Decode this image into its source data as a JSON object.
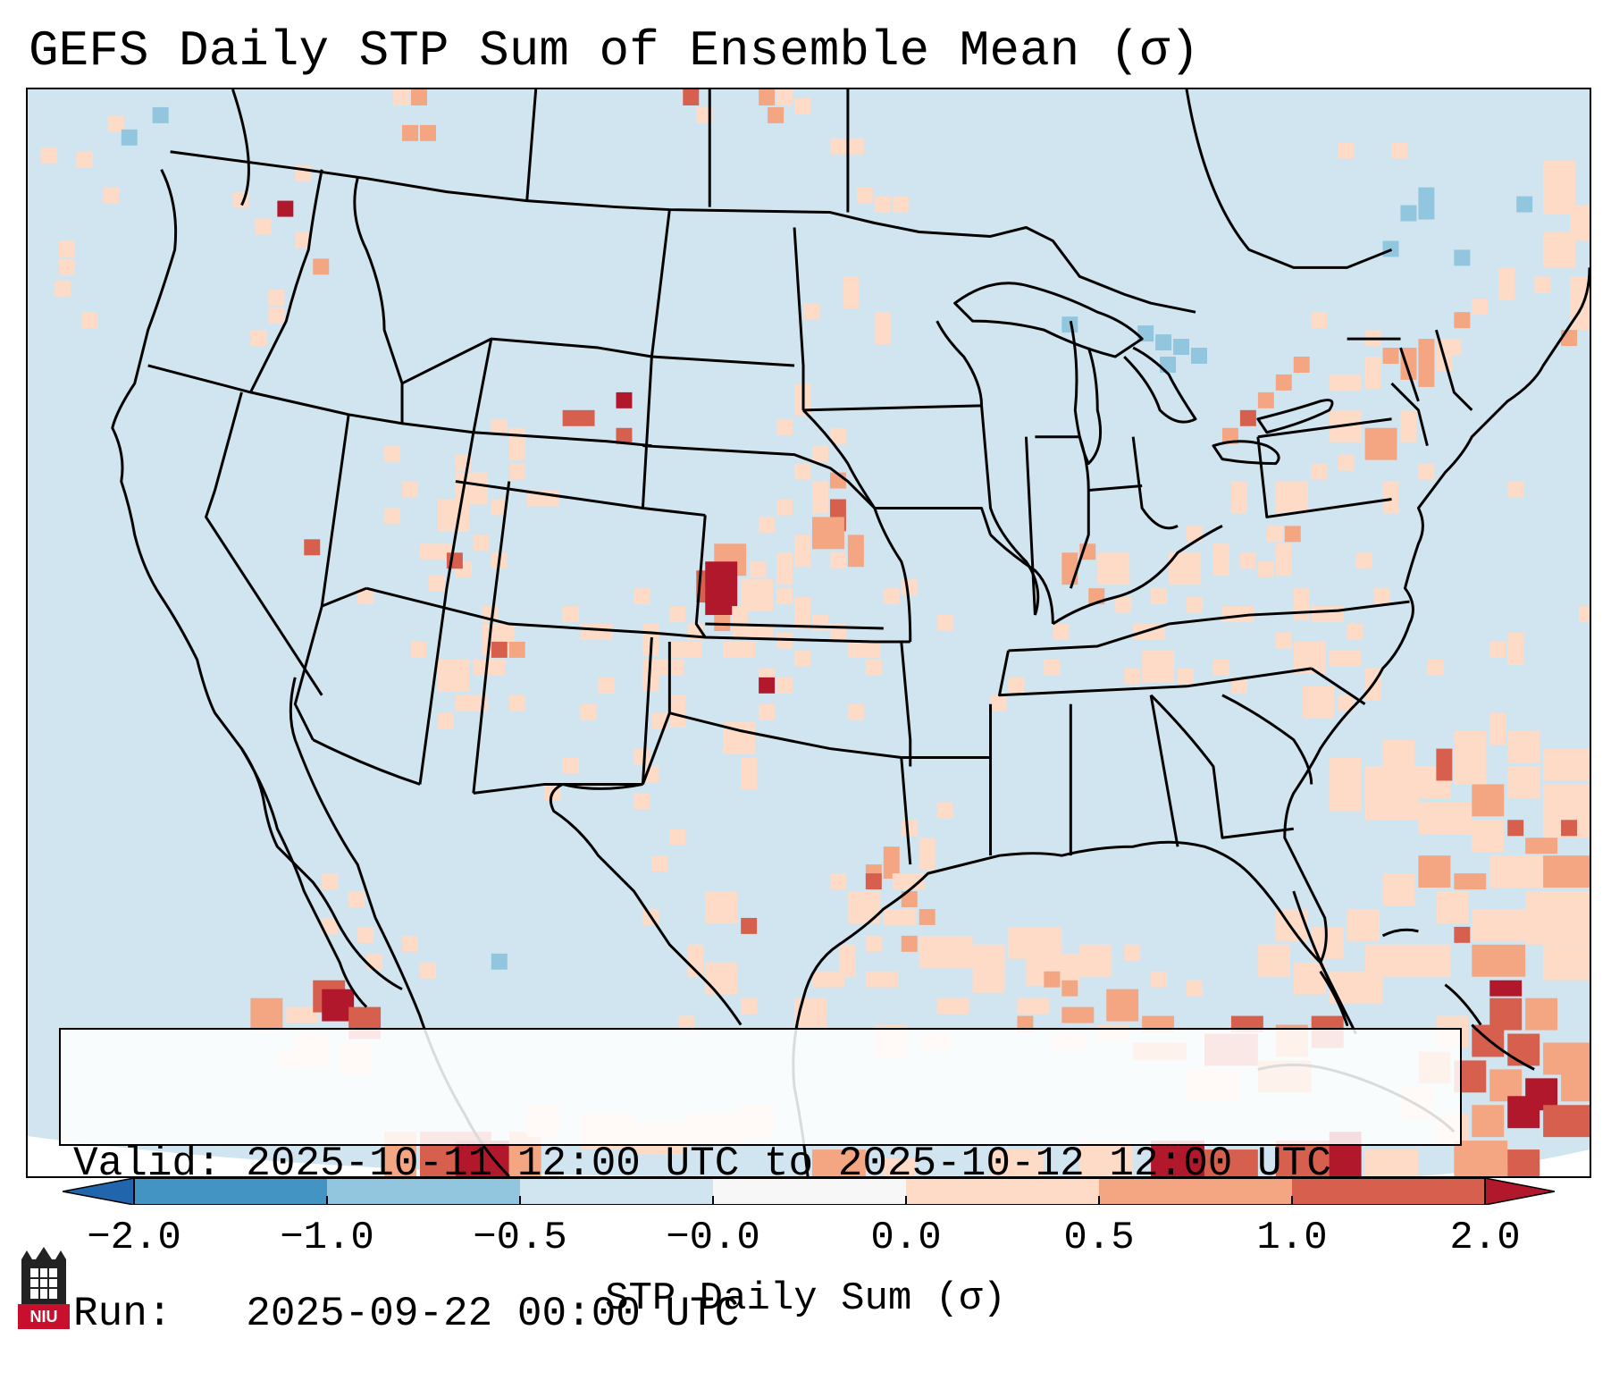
{
  "header": {
    "title": "GEFS Daily STP Sum of Ensemble Mean (σ)"
  },
  "info": {
    "valid_line": "Valid: 2025-10-11 12:00 UTC to 2025-10-12 12:00 UTC",
    "run_line": "Run:   2025-09-22 00:00 UTC"
  },
  "colorbar": {
    "label": "STP Daily Sum (σ)",
    "ticks": [
      "−2.0",
      "−1.0",
      "−0.5",
      "−0.0",
      "0.0",
      "0.5",
      "1.0",
      "2.0"
    ],
    "colors": {
      "under": "#2166ac",
      "bin_neg_2_neg_1": "#4393c3",
      "bin_neg_1_neg_05": "#92c5de",
      "bin_neg_05_0": "#d1e5f0",
      "bin_zero": "#f7f7f7",
      "bin_0_05": "#fddbc7",
      "bin_05_1": "#f4a582",
      "bin_1_2": "#d6604d",
      "over": "#b2182b"
    }
  },
  "map": {
    "background": "#d1e5f0",
    "line_color": "#000000"
  },
  "logo": {
    "text": "NIU"
  }
}
